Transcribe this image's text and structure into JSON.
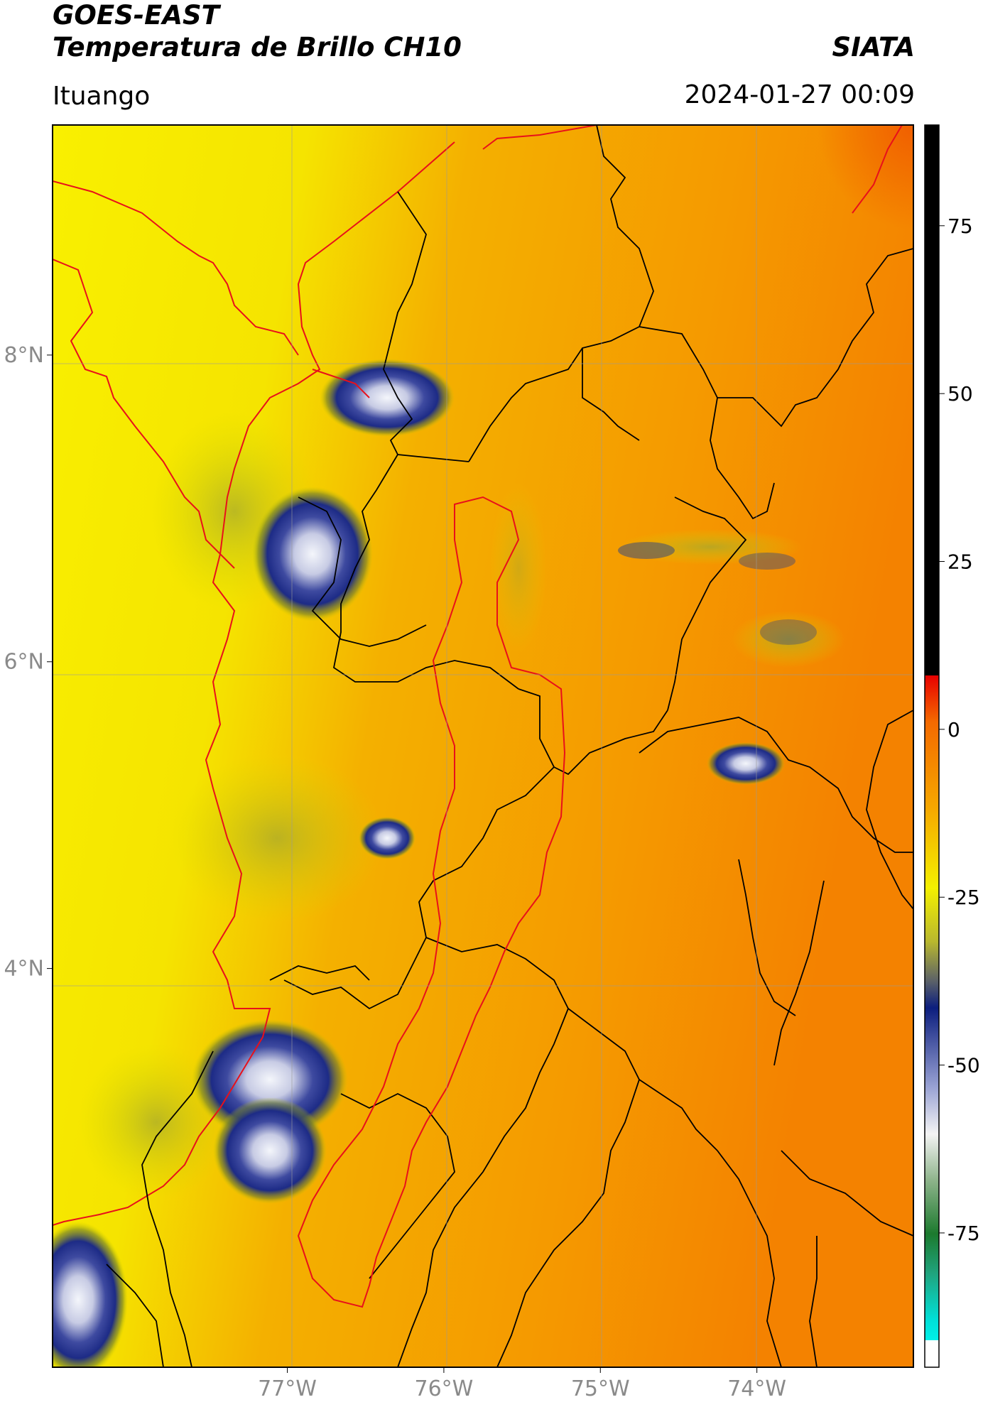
{
  "header": {
    "satellite": "GOES-EAST",
    "product": "Temperatura de Brillo CH10",
    "agency": "SIATA",
    "location": "Ituango",
    "timestamp": "2024-01-27 00:09"
  },
  "map": {
    "lon_range": [
      -78.5,
      -73.0
    ],
    "lat_range": [
      1.4,
      9.5
    ],
    "lon_ticks": [
      {
        "v": -77,
        "label": "77°W"
      },
      {
        "v": -76,
        "label": "76°W"
      },
      {
        "v": -75,
        "label": "75°W"
      },
      {
        "v": -74,
        "label": "74°W"
      }
    ],
    "lat_ticks": [
      {
        "v": 8,
        "label": "8°N"
      },
      {
        "v": 6,
        "label": "6°N"
      },
      {
        "v": 4,
        "label": "4°N"
      }
    ],
    "gridlines": true
  },
  "colorbar": {
    "range": [
      -95,
      90
    ],
    "ticks": [
      {
        "v": 75,
        "label": "75"
      },
      {
        "v": 50,
        "label": "50"
      },
      {
        "v": 25,
        "label": "25"
      },
      {
        "v": 0,
        "label": "0"
      },
      {
        "v": -25,
        "label": "-25"
      },
      {
        "v": -50,
        "label": "-50"
      },
      {
        "v": -75,
        "label": "-75"
      }
    ]
  },
  "colors": {
    "coast": "#e8101a",
    "border": "#000000"
  }
}
